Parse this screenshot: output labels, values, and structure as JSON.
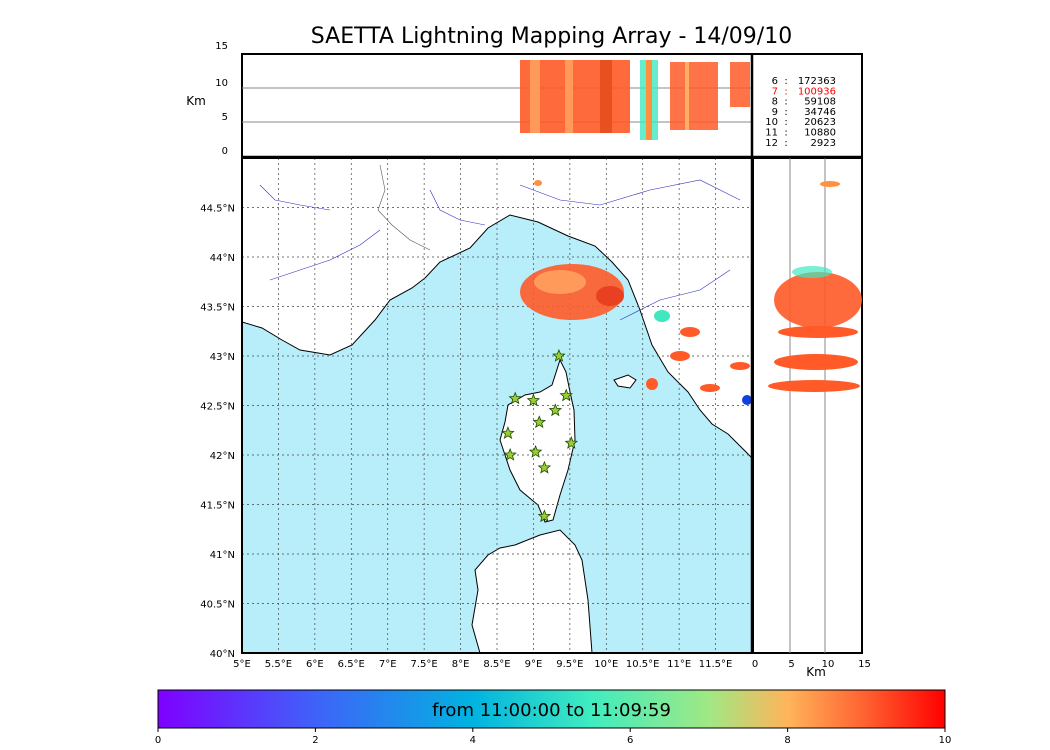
{
  "title": "SAETTA Lightning Mapping Array - 14/09/10",
  "altitude_axis_label": "Km",
  "altitude_ticks": [
    "15",
    "10",
    "5",
    "0"
  ],
  "lon_ticks": [
    "5°E",
    "5.5°E",
    "6°E",
    "6.5°E",
    "7°E",
    "7.5°E",
    "8°E",
    "8.5°E",
    "9°E",
    "9.5°E",
    "10°E",
    "10.5°E",
    "11°E",
    "11.5°E"
  ],
  "lat_ticks": [
    "44.5°N",
    "44°N",
    "43.5°N",
    "43°N",
    "42.5°N",
    "42°N",
    "41.5°N",
    "41°N",
    "40.5°N",
    "40°N"
  ],
  "side_ticks": [
    "0",
    "5",
    "10",
    "15"
  ],
  "side_axis_label": "Km",
  "station_counts": [
    {
      "station": "6",
      "count": "172363",
      "color": "#000000"
    },
    {
      "station": "7",
      "count": "100936",
      "color": "#ff0000"
    },
    {
      "station": "8",
      "count": "59108",
      "color": "#000000"
    },
    {
      "station": "9",
      "count": "34746",
      "color": "#000000"
    },
    {
      "station": "10",
      "count": "20623",
      "color": "#000000"
    },
    {
      "station": "11",
      "count": "10880",
      "color": "#000000"
    },
    {
      "station": "12",
      "count": "2923",
      "color": "#000000"
    }
  ],
  "colorbar": {
    "caption": "from 11:00:00 to 11:09:59",
    "ticks": [
      "0",
      "2",
      "4",
      "6",
      "8",
      "10"
    ],
    "colormap": "rainbow"
  },
  "map": {
    "lon_range": [
      5,
      12
    ],
    "lat_range": [
      40,
      45
    ],
    "altitude_range_km": [
      0,
      15
    ],
    "grid": "dotted",
    "sea_color": "#b8eefa",
    "station_marker": "star",
    "station_color": "#9acd32",
    "stations_lonlat": [
      [
        9.35,
        43.0
      ],
      [
        8.75,
        42.57
      ],
      [
        9.0,
        42.55
      ],
      [
        9.3,
        42.45
      ],
      [
        9.45,
        42.6
      ],
      [
        9.08,
        42.33
      ],
      [
        8.65,
        42.22
      ],
      [
        9.52,
        42.12
      ],
      [
        9.03,
        42.03
      ],
      [
        8.68,
        42.0
      ],
      [
        9.15,
        41.87
      ],
      [
        9.15,
        41.38
      ]
    ],
    "storm_cells": [
      {
        "lon": 9.45,
        "lat": 43.6,
        "color": "#ff5a28"
      },
      {
        "lon": 10.85,
        "lat": 43.28,
        "color": "#ff5a28"
      },
      {
        "lon": 10.95,
        "lat": 43.0,
        "color": "#ff5a28"
      },
      {
        "lon": 11.9,
        "lat": 42.95,
        "color": "#ff5a28"
      },
      {
        "lon": 11.45,
        "lat": 42.7,
        "color": "#ff5a28"
      },
      {
        "lon": 10.65,
        "lat": 42.72,
        "color": "#ff5a28"
      },
      {
        "lon": 10.8,
        "lat": 43.45,
        "color": "#40e8c0"
      },
      {
        "lon": 9.1,
        "lat": 44.75,
        "color": "#ff9040"
      }
    ]
  }
}
